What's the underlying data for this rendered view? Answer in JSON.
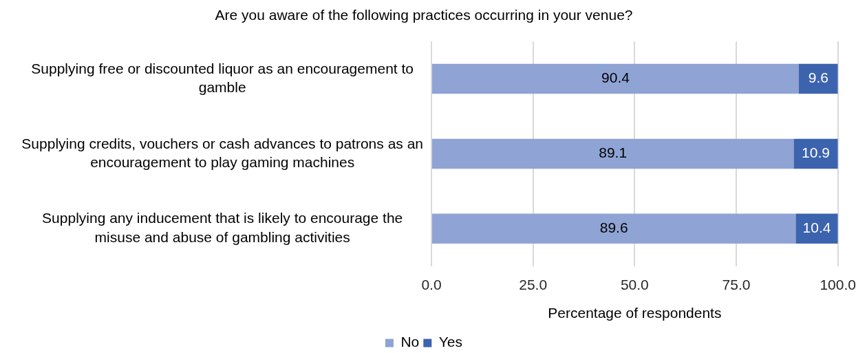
{
  "chart_data": {
    "type": "bar",
    "orientation": "horizontal",
    "stacked": true,
    "title": "Are you aware of the following practices occurring in your venue?",
    "categories": [
      "Supplying free or discounted liquor as an encouragement to gamble",
      "Supplying credits, vouchers or cash advances to patrons as an encouragement to play gaming machines",
      "Supplying any inducement that is likely to encourage the misuse and abuse of gambling activities"
    ],
    "series": [
      {
        "name": "No",
        "color": "#8fa3d4",
        "values": [
          90.4,
          89.1,
          89.6
        ]
      },
      {
        "name": "Yes",
        "color": "#3c63ad",
        "values": [
          9.6,
          10.9,
          10.4
        ]
      }
    ],
    "xlabel": "Percentage of respondents",
    "xlim": [
      0,
      100
    ],
    "xticks": [
      {
        "value": 0,
        "label": "0.0"
      },
      {
        "value": 25,
        "label": "25.0"
      },
      {
        "value": 50,
        "label": "50.0"
      },
      {
        "value": 75,
        "label": "75.0"
      },
      {
        "value": 100,
        "label": "100.0"
      }
    ],
    "grid": "x",
    "legend": "bottom",
    "data_labels": true
  }
}
